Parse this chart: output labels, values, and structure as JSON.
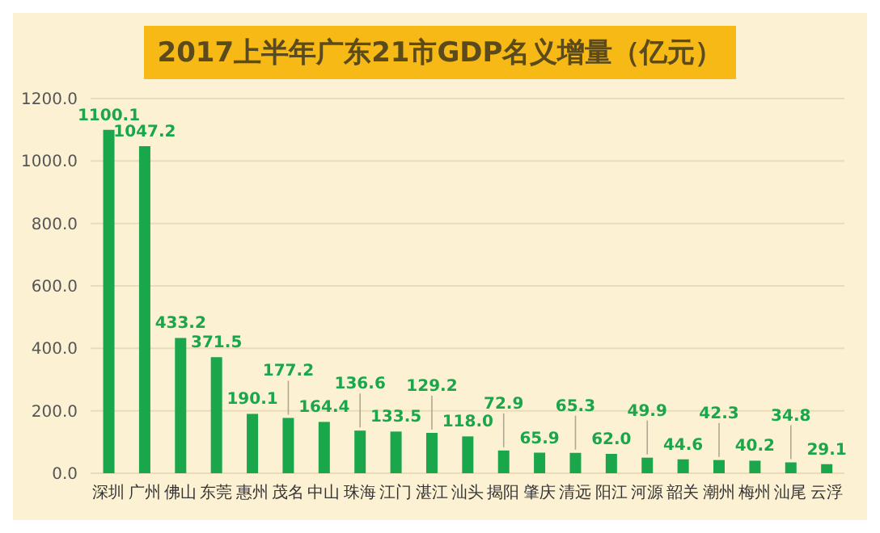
{
  "chart_data": {
    "type": "bar",
    "title": "2017上半年广东21市GDP名义增量（亿元）",
    "categories": [
      "深圳",
      "广州",
      "佛山",
      "东莞",
      "惠州",
      "茂名",
      "中山",
      "珠海",
      "江门",
      "湛江",
      "汕头",
      "揭阳",
      "肇庆",
      "清远",
      "阳江",
      "河源",
      "韶关",
      "潮州",
      "梅州",
      "汕尾",
      "云浮"
    ],
    "values": [
      1100.1,
      1047.2,
      433.2,
      371.5,
      190.1,
      177.2,
      164.4,
      136.6,
      133.5,
      129.2,
      118.0,
      72.9,
      65.9,
      65.3,
      62.0,
      49.9,
      44.6,
      42.3,
      40.2,
      34.8,
      29.1
    ],
    "value_labels": [
      "1100.1",
      "1047.2",
      "433.2",
      "371.5",
      "190.1",
      "177.2",
      "164.4",
      "136.6",
      "133.5",
      "129.2",
      "118.0",
      "72.9",
      "65.9",
      "65.3",
      "62.0",
      "49.9",
      "44.6",
      "42.3",
      "40.2",
      "34.8",
      "29.1"
    ],
    "color": "#1aa64a",
    "ylim": [
      0,
      1200
    ],
    "yticks": [
      {
        "value": 0,
        "label": "0.0"
      },
      {
        "value": 200,
        "label": "200.0"
      },
      {
        "value": 400,
        "label": "400.0"
      },
      {
        "value": 600,
        "label": "600.0"
      },
      {
        "value": 800,
        "label": "800.0"
      },
      {
        "value": 1000,
        "label": "1000.0"
      },
      {
        "value": 1200,
        "label": "1200.0"
      }
    ],
    "grid": "y"
  }
}
